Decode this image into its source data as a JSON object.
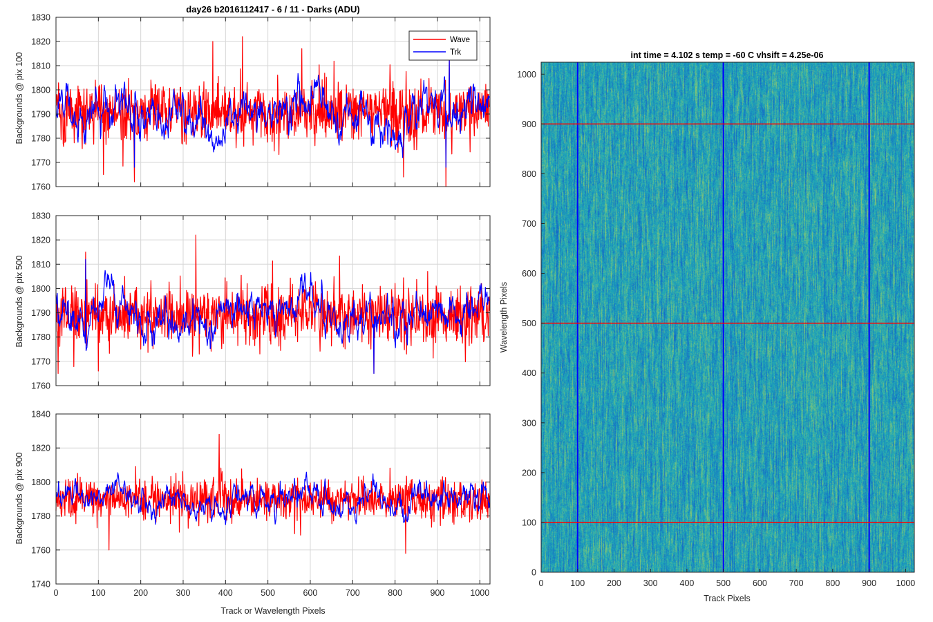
{
  "figure": {
    "colors": {
      "wave": "#ff0000",
      "trk": "#0000ff",
      "heat_low": "#1565c8",
      "heat_mid": "#1ea7b8",
      "heat_high": "#8cc870"
    }
  },
  "chart_data": [
    {
      "type": "line",
      "title": "day26 b2016112417 - 6 / 11 - Darks (ADU)",
      "xlabel": "",
      "ylabel": "Backgrounds @ pix 100",
      "xlim": [
        0,
        1024
      ],
      "ylim": [
        1760,
        1830
      ],
      "xticks": [
        0,
        100,
        200,
        300,
        400,
        500,
        600,
        700,
        800,
        900,
        1000
      ],
      "yticks": [
        1760,
        1770,
        1780,
        1790,
        1800,
        1810,
        1820,
        1830
      ],
      "xtick_labels": [],
      "grid": true,
      "legend": {
        "position": "top-right",
        "entries": [
          "Wave",
          "Trk"
        ]
      },
      "series": [
        {
          "name": "Wave",
          "color": "#ff0000",
          "n_points": 1024,
          "mean": 1791,
          "range": [
            1760,
            1822
          ]
        },
        {
          "name": "Trk",
          "color": "#0000ff",
          "n_points": 1024,
          "mean": 1789,
          "range": [
            1768,
            1822
          ]
        }
      ],
      "peaks": [
        [
          440,
          1822
        ],
        [
          370,
          1820
        ],
        [
          580,
          1817
        ],
        [
          928,
          1814
        ],
        [
          112,
          1765
        ],
        [
          185,
          1762
        ],
        [
          820,
          1764
        ],
        [
          920,
          1760
        ]
      ]
    },
    {
      "type": "line",
      "title": "",
      "xlabel": "",
      "ylabel": "Backgrounds @ pix 500",
      "xlim": [
        0,
        1024
      ],
      "ylim": [
        1760,
        1830
      ],
      "xticks": [
        0,
        100,
        200,
        300,
        400,
        500,
        600,
        700,
        800,
        900,
        1000
      ],
      "yticks": [
        1760,
        1770,
        1780,
        1790,
        1800,
        1810,
        1820,
        1830
      ],
      "xtick_labels": [],
      "grid": true,
      "series": [
        {
          "name": "Wave",
          "color": "#ff0000",
          "n_points": 1024,
          "mean": 1789,
          "range": [
            1765,
            1822
          ]
        },
        {
          "name": "Trk",
          "color": "#0000ff",
          "n_points": 1024,
          "mean": 1789,
          "range": [
            1760,
            1812
          ]
        }
      ],
      "peaks": [
        [
          330,
          1822
        ],
        [
          70,
          1815
        ],
        [
          5,
          1760
        ],
        [
          750,
          1765
        ],
        [
          100,
          1766
        ]
      ]
    },
    {
      "type": "line",
      "title": "",
      "xlabel": "Track or Wavelength Pixels",
      "ylabel": "Backgrounds @ pix 900",
      "xlim": [
        0,
        1024
      ],
      "ylim": [
        1740,
        1840
      ],
      "xticks": [
        0,
        100,
        200,
        300,
        400,
        500,
        600,
        700,
        800,
        900,
        1000
      ],
      "yticks": [
        1740,
        1760,
        1780,
        1800,
        1820,
        1840
      ],
      "xtick_labels": [
        "0",
        "100",
        "200",
        "300",
        "400",
        "500",
        "600",
        "700",
        "800",
        "900",
        "1000"
      ],
      "grid": true,
      "series": [
        {
          "name": "Wave",
          "color": "#ff0000",
          "n_points": 1024,
          "mean": 1790,
          "range": [
            1758,
            1828
          ]
        },
        {
          "name": "Trk",
          "color": "#0000ff",
          "n_points": 1024,
          "mean": 1790,
          "range": [
            1760,
            1818
          ]
        }
      ],
      "peaks": [
        [
          385,
          1828
        ],
        [
          825,
          1758
        ],
        [
          125,
          1760
        ]
      ]
    },
    {
      "type": "heatmap",
      "title": "int time = 4.102 s   temp = -60 C   vhsift = 4.25e-06",
      "xlabel": "Track Pixels",
      "ylabel": "Wavelength Pixels",
      "xlim": [
        0,
        1024
      ],
      "ylim": [
        0,
        1024
      ],
      "xticks": [
        0,
        100,
        200,
        300,
        400,
        500,
        600,
        700,
        800,
        900,
        1000
      ],
      "yticks": [
        0,
        100,
        200,
        300,
        400,
        500,
        600,
        700,
        800,
        900,
        1000
      ],
      "grid": false,
      "vertical_markers": {
        "color": "#0000ff",
        "x": [
          100,
          500,
          900
        ]
      },
      "horizontal_markers": {
        "color": "#ff0000",
        "y": [
          100,
          500,
          900
        ]
      }
    }
  ]
}
